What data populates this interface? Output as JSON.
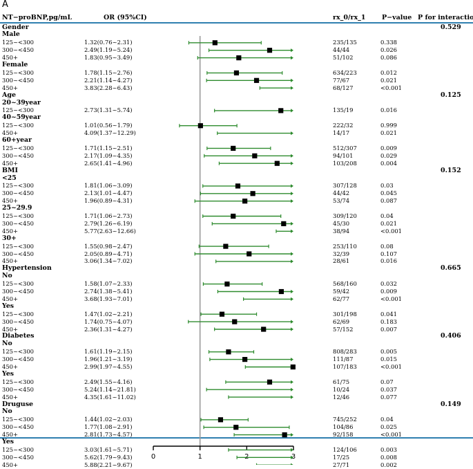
{
  "panel_label": "A",
  "headers": {
    "label": "NT−proBNP,pg/mL",
    "or": "OR (95%CI)",
    "rx": "rx_0/rx_1",
    "p": "P−value",
    "interaction": "P for interaction"
  },
  "colors": {
    "ci_line": "#2e8b2e",
    "point": "#000000",
    "rule": "#2f7fb0",
    "ref_line": "#9a9a9a"
  },
  "chart_data": {
    "type": "forest",
    "title": "",
    "xlabel": "",
    "ylabel": "",
    "xlim": [
      0,
      3
    ],
    "x_ticks": [
      "0",
      "1",
      "2",
      "3"
    ],
    "reference_line": 1,
    "rows": [
      {
        "kind": "group",
        "label": "Gender",
        "interaction": "0.529"
      },
      {
        "kind": "sub",
        "label": "Male"
      },
      {
        "kind": "data",
        "label": "125~<300",
        "or_text": "1.32(0.76~2.31)",
        "or": 1.32,
        "lo": 0.76,
        "hi": 2.31,
        "rx": "235/135",
        "p": "0.338"
      },
      {
        "kind": "data",
        "label": "300~<450",
        "or_text": "2.49(1.19~5.24)",
        "or": 2.49,
        "lo": 1.19,
        "hi": 5.24,
        "rx": "44/44",
        "p": "0.026"
      },
      {
        "kind": "data",
        "label": "450+",
        "or_text": "1.83(0.95~3.49)",
        "or": 1.83,
        "lo": 0.95,
        "hi": 3.49,
        "rx": "51/102",
        "p": "0.086"
      },
      {
        "kind": "sub",
        "label": "Female"
      },
      {
        "kind": "data",
        "label": "125~<300",
        "or_text": "1.78(1.15~2.76)",
        "or": 1.78,
        "lo": 1.15,
        "hi": 2.76,
        "rx": "634/223",
        "p": "0.012"
      },
      {
        "kind": "data",
        "label": "300~<450",
        "or_text": "2.21(1.14~4.27)",
        "or": 2.21,
        "lo": 1.14,
        "hi": 4.27,
        "rx": "77/67",
        "p": "0.021"
      },
      {
        "kind": "data",
        "label": "450+",
        "or_text": "3.83(2.28~6.43)",
        "or": 3.83,
        "lo": 2.28,
        "hi": 6.43,
        "rx": "68/127",
        "p": "<0.001"
      },
      {
        "kind": "group",
        "label": "Age",
        "interaction": "0.125"
      },
      {
        "kind": "sub",
        "label": "20~39year"
      },
      {
        "kind": "data",
        "label": "125~<300",
        "or_text": "2.73(1.31~5.74)",
        "or": 2.73,
        "lo": 1.31,
        "hi": 5.74,
        "rx": "135/19",
        "p": "0.016"
      },
      {
        "kind": "sub",
        "label": "40~59year"
      },
      {
        "kind": "data",
        "label": "125~<300",
        "or_text": "1.01(0.56~1.79)",
        "or": 1.01,
        "lo": 0.56,
        "hi": 1.79,
        "rx": "222/32",
        "p": "0.999"
      },
      {
        "kind": "data",
        "label": "450+",
        "or_text": "4.09(1.37~12.29)",
        "or": 4.09,
        "lo": 1.37,
        "hi": 12.29,
        "rx": "14/17",
        "p": "0.021"
      },
      {
        "kind": "sub",
        "label": "60+year"
      },
      {
        "kind": "data",
        "label": "125~<300",
        "or_text": "1.71(1.15~2.51)",
        "or": 1.71,
        "lo": 1.15,
        "hi": 2.51,
        "rx": "512/307",
        "p": "0.009"
      },
      {
        "kind": "data",
        "label": "300~<450",
        "or_text": "2.17(1.09~4.35)",
        "or": 2.17,
        "lo": 1.09,
        "hi": 4.35,
        "rx": "94/101",
        "p": "0.029"
      },
      {
        "kind": "data",
        "label": "450+",
        "or_text": "2.65(1.41~4.96)",
        "or": 2.65,
        "lo": 1.41,
        "hi": 4.96,
        "rx": "103/208",
        "p": "0.004"
      },
      {
        "kind": "group",
        "label": "BMI",
        "interaction": "0.152"
      },
      {
        "kind": "sub",
        "label": "<25"
      },
      {
        "kind": "data",
        "label": "125~<300",
        "or_text": "1.81(1.06~3.09)",
        "or": 1.81,
        "lo": 1.06,
        "hi": 3.09,
        "rx": "307/128",
        "p": "0.03"
      },
      {
        "kind": "data",
        "label": "300~<450",
        "or_text": "2.13(1.01~4.47)",
        "or": 2.13,
        "lo": 1.01,
        "hi": 4.47,
        "rx": "44/42",
        "p": "0.045"
      },
      {
        "kind": "data",
        "label": "450+",
        "or_text": "1.96(0.89~4.31)",
        "or": 1.96,
        "lo": 0.89,
        "hi": 4.31,
        "rx": "53/74",
        "p": "0.087"
      },
      {
        "kind": "sub",
        "label": "25~29.9"
      },
      {
        "kind": "data",
        "label": "125~<300",
        "or_text": "1.71(1.06~2.73)",
        "or": 1.71,
        "lo": 1.06,
        "hi": 2.73,
        "rx": "309/120",
        "p": "0.04"
      },
      {
        "kind": "data",
        "label": "300~<450",
        "or_text": "2.79(1.26~6.19)",
        "or": 2.79,
        "lo": 1.26,
        "hi": 6.19,
        "rx": "45/30",
        "p": "0.021"
      },
      {
        "kind": "data",
        "label": "450+",
        "or_text": "5.77(2.63~12.66)",
        "or": 5.77,
        "lo": 2.63,
        "hi": 12.66,
        "rx": "38/94",
        "p": "<0.001"
      },
      {
        "kind": "sub",
        "label": "30+"
      },
      {
        "kind": "data",
        "label": "125~<300",
        "or_text": "1.55(0.98~2.47)",
        "or": 1.55,
        "lo": 0.98,
        "hi": 2.47,
        "rx": "253/110",
        "p": "0.08"
      },
      {
        "kind": "data",
        "label": "300~<450",
        "or_text": "2.05(0.89~4.71)",
        "or": 2.05,
        "lo": 0.89,
        "hi": 4.71,
        "rx": "32/39",
        "p": "0.107"
      },
      {
        "kind": "data",
        "label": "450+",
        "or_text": "3.06(1.34~7.02)",
        "or": 3.06,
        "lo": 1.34,
        "hi": 7.02,
        "rx": "28/61",
        "p": "0.016"
      },
      {
        "kind": "group",
        "label": "Hypertension",
        "interaction": "0.665"
      },
      {
        "kind": "sub",
        "label": "No"
      },
      {
        "kind": "data",
        "label": "125~<300",
        "or_text": "1.58(1.07~2.33)",
        "or": 1.58,
        "lo": 1.07,
        "hi": 2.33,
        "rx": "568/160",
        "p": "0.032"
      },
      {
        "kind": "data",
        "label": "300~<450",
        "or_text": "2.74(1.38~5.41)",
        "or": 2.74,
        "lo": 1.38,
        "hi": 5.41,
        "rx": "59/42",
        "p": "0.009"
      },
      {
        "kind": "data",
        "label": "450+",
        "or_text": "3.68(1.93~7.01)",
        "or": 3.68,
        "lo": 1.93,
        "hi": 7.01,
        "rx": "62/77",
        "p": "<0.001"
      },
      {
        "kind": "sub",
        "label": "Yes"
      },
      {
        "kind": "data",
        "label": "125~<300",
        "or_text": "1.47(1.02~2.21)",
        "or": 1.47,
        "lo": 1.02,
        "hi": 2.21,
        "rx": "301/198",
        "p": "0.041"
      },
      {
        "kind": "data",
        "label": "300~<450",
        "or_text": "1.74(0.75~4.07)",
        "or": 1.74,
        "lo": 0.75,
        "hi": 4.07,
        "rx": "62/69",
        "p": "0.183"
      },
      {
        "kind": "data",
        "label": "450+",
        "or_text": "2.36(1.31~4.27)",
        "or": 2.36,
        "lo": 1.31,
        "hi": 4.27,
        "rx": "57/152",
        "p": "0.007"
      },
      {
        "kind": "group",
        "label": "Diabetes",
        "interaction": "0.406"
      },
      {
        "kind": "sub",
        "label": "No"
      },
      {
        "kind": "data",
        "label": "125~<300",
        "or_text": "1.61(1.19~2.15)",
        "or": 1.61,
        "lo": 1.19,
        "hi": 2.15,
        "rx": "808/283",
        "p": "0.005"
      },
      {
        "kind": "data",
        "label": "300~<450",
        "or_text": "1.96(1.21~3.19)",
        "or": 1.96,
        "lo": 1.21,
        "hi": 3.19,
        "rx": "111/87",
        "p": "0.015"
      },
      {
        "kind": "data",
        "label": "450+",
        "or_text": "2.99(1.97~4.55)",
        "or": 2.99,
        "lo": 1.97,
        "hi": 4.55,
        "rx": "107/183",
        "p": "<0.001"
      },
      {
        "kind": "sub",
        "label": "Yes"
      },
      {
        "kind": "data",
        "label": "125~<300",
        "or_text": "2.49(1.55~4.16)",
        "or": 2.49,
        "lo": 1.55,
        "hi": 4.16,
        "rx": "61/75",
        "p": "0.07"
      },
      {
        "kind": "data",
        "label": "300~<450",
        "or_text": "5.24(1.14~21.81)",
        "or": 5.24,
        "lo": 1.14,
        "hi": 21.81,
        "rx": "10/24",
        "p": "0.037"
      },
      {
        "kind": "data",
        "label": "450+",
        "or_text": "4.35(1.61~11.02)",
        "or": 4.35,
        "lo": 1.61,
        "hi": 11.02,
        "rx": "12/46",
        "p": "0.077"
      },
      {
        "kind": "group",
        "label": "Druguse",
        "interaction": "0.149"
      },
      {
        "kind": "sub",
        "label": "No"
      },
      {
        "kind": "data",
        "label": "125~<300",
        "or_text": "1.44(1.02~2.03)",
        "or": 1.44,
        "lo": 1.02,
        "hi": 2.03,
        "rx": "745/252",
        "p": "0.04"
      },
      {
        "kind": "data",
        "label": "300~<450",
        "or_text": "1.77(1.08~2.91)",
        "or": 1.77,
        "lo": 1.08,
        "hi": 2.91,
        "rx": "104/86",
        "p": "0.025"
      },
      {
        "kind": "data",
        "label": "450+",
        "or_text": "2.81(1.73~4.57)",
        "or": 2.81,
        "lo": 1.73,
        "hi": 4.57,
        "rx": "92/158",
        "p": "<0.001"
      },
      {
        "kind": "sub",
        "label": "Yes"
      },
      {
        "kind": "data",
        "label": "125~<300",
        "or_text": "3.03(1.61~5.71)",
        "or": 3.03,
        "lo": 1.61,
        "hi": 5.71,
        "rx": "124/106",
        "p": "0.003"
      },
      {
        "kind": "data",
        "label": "300~<450",
        "or_text": "5.62(1.79~9.43)",
        "or": 5.62,
        "lo": 1.79,
        "hi": 9.43,
        "rx": "17/25",
        "p": "0.008"
      },
      {
        "kind": "data",
        "label": "450+",
        "or_text": "5.88(2.21~9.67)",
        "or": 5.88,
        "lo": 2.21,
        "hi": 9.67,
        "rx": "27/71",
        "p": "0.002"
      }
    ]
  }
}
